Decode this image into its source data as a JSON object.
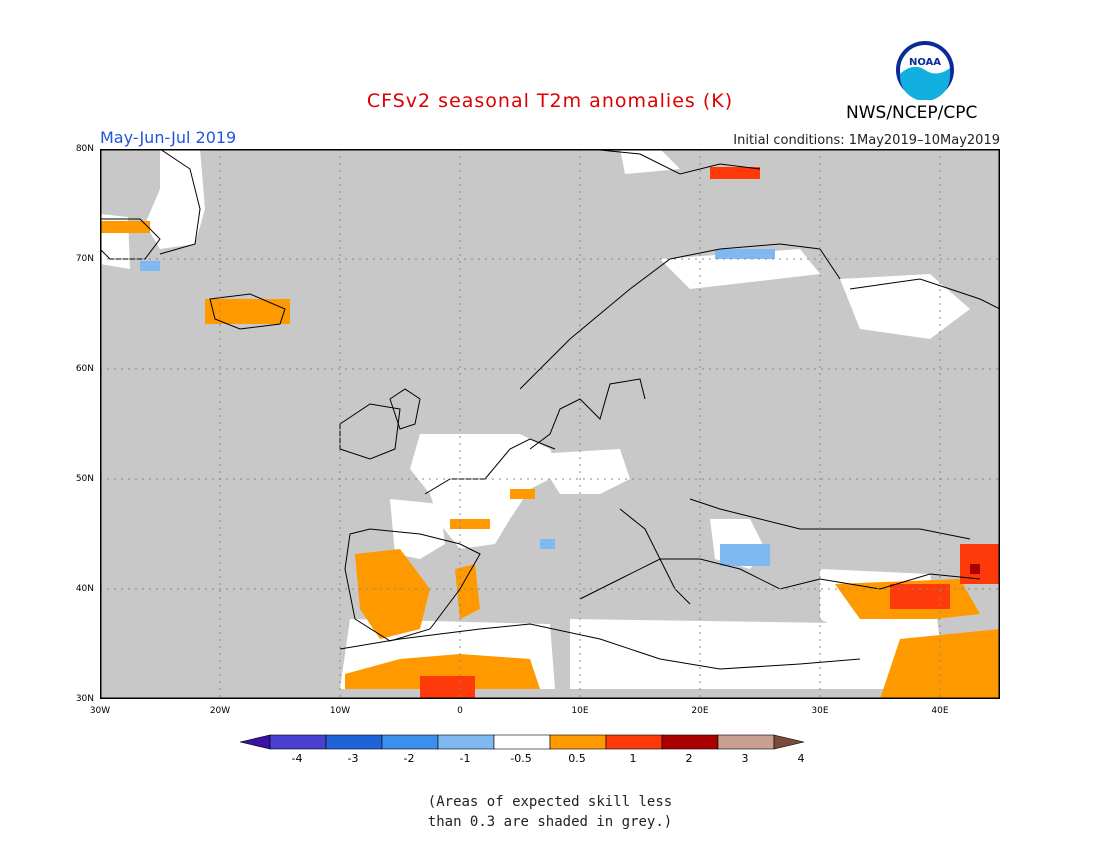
{
  "title": "CFSv2 seasonal T2m anomalies (K)",
  "period": "May-Jun-Jul 2019",
  "initial_conditions": "Initial conditions: 1May2019–10May2019",
  "organization": "NWS/NCEP/CPC",
  "logo_text": "NOAA",
  "lat_labels": [
    "80N",
    "70N",
    "60N",
    "50N",
    "40N",
    "30N"
  ],
  "lon_labels": [
    "30W",
    "20W",
    "10W",
    "0",
    "10E",
    "20E",
    "30E",
    "40E"
  ],
  "colorbar": {
    "labels": [
      "-4",
      "-3",
      "-2",
      "-1",
      "-0.5",
      "0.5",
      "1",
      "2",
      "3",
      "4"
    ],
    "colors": [
      "#3b12a6",
      "#4a3fd0",
      "#1e64d8",
      "#3c8fee",
      "#80b8f2",
      "#ffffff",
      "#ff9900",
      "#ff3a0a",
      "#aa0000",
      "#c8a090",
      "#7a4a3a"
    ]
  },
  "note_line1": "(Areas of expected skill less",
  "note_line2": "than 0.3 are shaded in grey.)",
  "colors": {
    "grey_low_skill": "#c8c8c8",
    "title": "#dd0000",
    "period": "#2255dd"
  }
}
